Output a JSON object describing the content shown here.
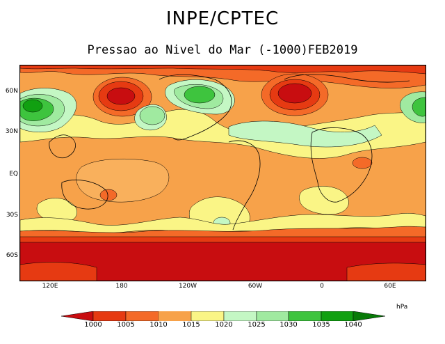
{
  "header": {
    "title": "INPE/CPTEC",
    "subtitle": "Pressao ao Nivel do Mar (-1000)FEB2019"
  },
  "axes": {
    "y_labels": [
      "60N",
      "30N",
      "EQ",
      "30S",
      "60S"
    ],
    "x_labels": [
      "120E",
      "180",
      "120W",
      "60W",
      "0",
      "60E"
    ]
  },
  "legend": {
    "unit": "hPa",
    "levels": [
      "1000",
      "1005",
      "1010",
      "1015",
      "1020",
      "1025",
      "1030",
      "1035",
      "1040"
    ]
  },
  "colors": {
    "below_1000": "#c80d10",
    "1000_1005": "#e63a12",
    "1005_1010": "#f46a28",
    "1010_1015": "#f7a24a",
    "1015_1020": "#faf586",
    "1020_1025": "#c4f7c4",
    "1025_1030": "#a0eaa0",
    "1030_1035": "#3ec43e",
    "1035_1040": "#11a011",
    "above_1040": "#087a08"
  }
}
